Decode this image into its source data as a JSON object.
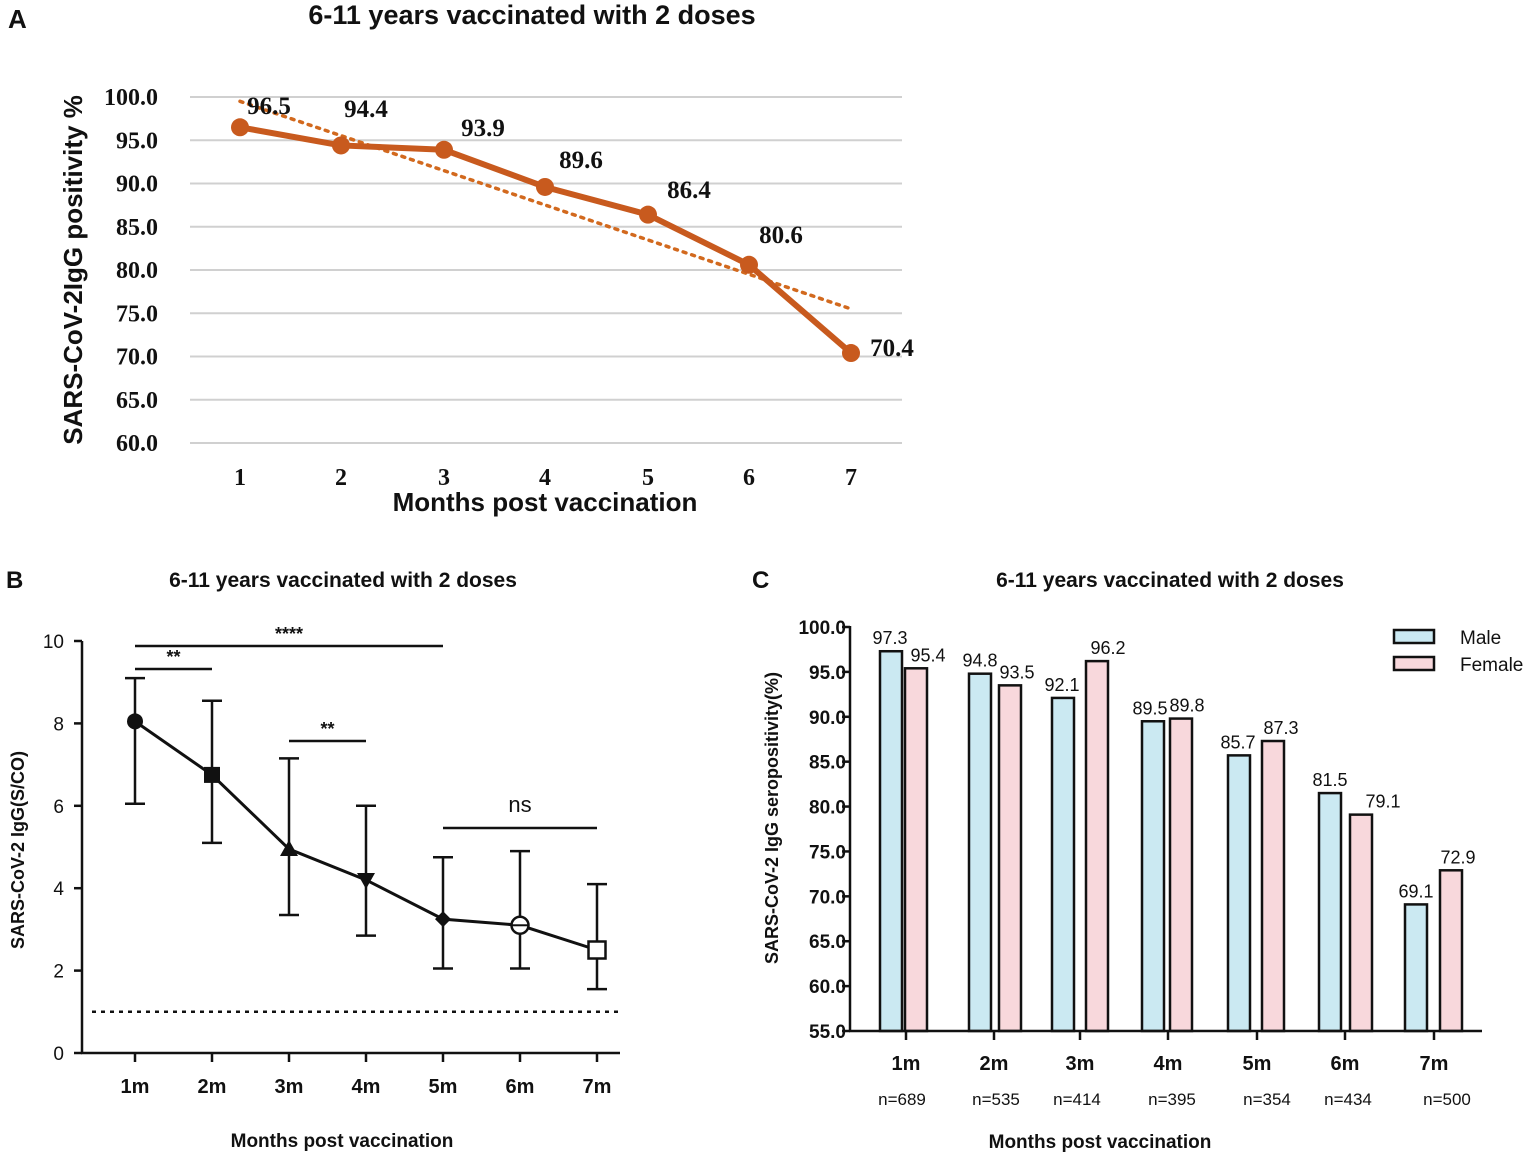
{
  "panels": {
    "a": {
      "letter": "A"
    },
    "b": {
      "letter": "B"
    },
    "c": {
      "letter": "C"
    }
  },
  "colors": {
    "line_a": "#c85a1e",
    "trend_a": "#d2691e",
    "grid": "#d0d0d0",
    "ink": "#111111",
    "male_fill": "#cbe9f2",
    "female_fill": "#f8d8dc"
  },
  "chart_data": [
    {
      "type": "line",
      "title": "6-11 years vaccinated  with 2 doses",
      "xlabel": "Months post vaccination",
      "ylabel": "SARS-CoV-2IgG positivity %",
      "x": [
        "1",
        "2",
        "3",
        "4",
        "5",
        "6",
        "7"
      ],
      "values": [
        96.5,
        94.4,
        93.9,
        89.6,
        86.4,
        80.6,
        70.4
      ],
      "value_labels": [
        "96.5",
        "94.4",
        "93.9",
        "89.6",
        "86.4",
        "80.6",
        "70.4"
      ],
      "yticks": [
        "100.0",
        "95.0",
        "90.0",
        "85.0",
        "80.0",
        "75.0",
        "70.0",
        "65.0",
        "60.0"
      ],
      "ylim": [
        60,
        100
      ],
      "grid": true,
      "trendline": {
        "type": "linear",
        "start": 99.5,
        "end": 75.5
      }
    },
    {
      "type": "line",
      "title": "6-11 years vaccinated with 2 doses",
      "xlabel": "Months post vaccination",
      "ylabel": "SARS-CoV-2 IgG(S/CO)",
      "categories": [
        "1m",
        "2m",
        "3m",
        "4m",
        "5m",
        "6m",
        "7m"
      ],
      "values": [
        8.05,
        6.75,
        4.95,
        4.2,
        3.25,
        3.1,
        2.5
      ],
      "error_upper": [
        9.1,
        8.55,
        7.15,
        6.0,
        4.75,
        4.9,
        4.1
      ],
      "error_lower": [
        6.05,
        5.1,
        3.35,
        2.85,
        2.05,
        2.05,
        1.55
      ],
      "markers": [
        "circle",
        "square",
        "triangle",
        "triangle-down",
        "diamond",
        "circle-open",
        "square-open"
      ],
      "yticks": [
        "0",
        "2",
        "4",
        "6",
        "8",
        "10"
      ],
      "ylim": [
        0,
        10
      ],
      "reference_line": 1.0,
      "significance": [
        {
          "from": "1m",
          "to": "5m",
          "label": "****"
        },
        {
          "from": "1m",
          "to": "2m",
          "label": "**"
        },
        {
          "from": "3m",
          "to": "4m",
          "label": "**"
        },
        {
          "from": "5m",
          "to": "7m",
          "label": "ns"
        }
      ]
    },
    {
      "type": "bar",
      "title": "6-11 years vaccinated with 2 doses",
      "xlabel": "Months post vaccination",
      "ylabel": "SARS-CoV-2 IgG seropositivity(%)",
      "categories": [
        "1m",
        "2m",
        "3m",
        "4m",
        "5m",
        "6m",
        "7m"
      ],
      "sample_sizes": [
        "n=689",
        "n=535",
        "n=414",
        "n=395",
        "n=354",
        "n=434",
        "n=500"
      ],
      "series": [
        {
          "name": "Male",
          "values": [
            97.3,
            94.8,
            92.1,
            89.5,
            85.7,
            81.5,
            69.1
          ],
          "labels": [
            "97.3",
            "94.8",
            "92.1",
            "89.5",
            "85.7",
            "81.5",
            "69.1"
          ]
        },
        {
          "name": "Female",
          "values": [
            95.4,
            93.5,
            96.2,
            89.8,
            87.3,
            79.1,
            72.9
          ],
          "labels": [
            "95.4",
            "93.5",
            "96.2",
            "89.8",
            "87.3",
            "79.1",
            "72.9"
          ]
        }
      ],
      "yticks": [
        "100.0",
        "95.0",
        "90.0",
        "85.0",
        "80.0",
        "75.0",
        "70.0",
        "65.0",
        "60.0",
        "55.0"
      ],
      "ylim": [
        55,
        100
      ],
      "legend": "top-right"
    }
  ]
}
